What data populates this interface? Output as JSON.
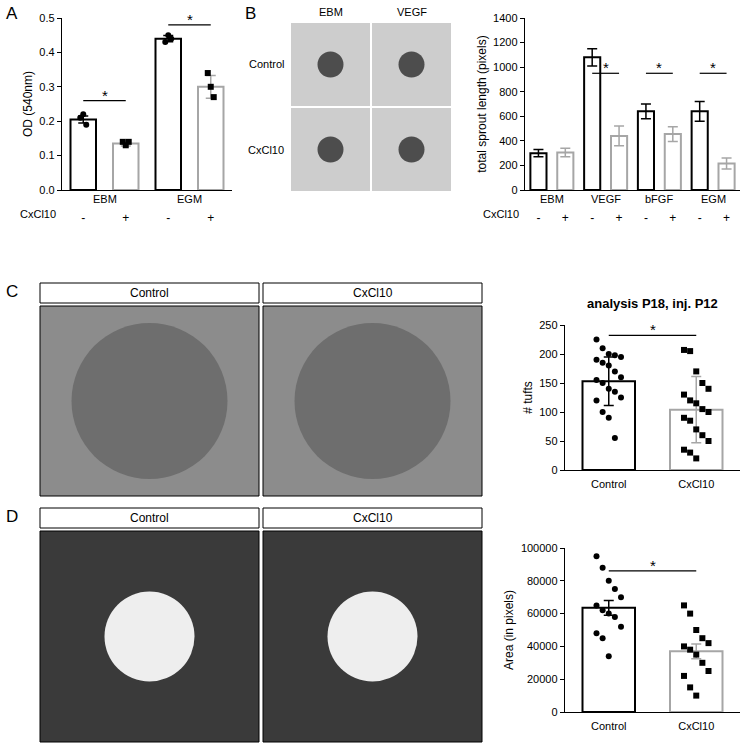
{
  "panel_labels": [
    "A",
    "B",
    "C",
    "D"
  ],
  "image_panels": [
    {
      "columns": [
        "EBM",
        "VEGF"
      ],
      "rows": [
        "Control",
        "CxCl10"
      ]
    },
    {
      "columns": [
        "Control",
        "CxCl10"
      ]
    },
    {
      "columns": [
        "Control",
        "CxCl10"
      ]
    }
  ],
  "chart_data": [
    {
      "type": "bar",
      "categories": [
        "-",
        "+",
        "-",
        "+"
      ],
      "groups": [
        "EBM",
        "EBM",
        "EGM",
        "EGM"
      ],
      "group_label": "CxCl10",
      "values": [
        0.205,
        0.135,
        0.44,
        0.3
      ],
      "errors": [
        0.01,
        0.007,
        0.009,
        0.033
      ],
      "points": [
        [
          0.21,
          0.22,
          0.19
        ],
        [
          0.14,
          0.13,
          0.14
        ],
        [
          0.43,
          0.45,
          0.44
        ],
        [
          0.34,
          0.3,
          0.27
        ]
      ],
      "colors": [
        "#000000",
        "#a6a6a6",
        "#000000",
        "#a6a6a6"
      ],
      "markers": [
        "circle",
        "square",
        "circle",
        "square"
      ],
      "ylabel": "OD (540nm)",
      "ylim": [
        0,
        0.5
      ],
      "yticks": [
        {
          "value": 0,
          "label": "0.0"
        },
        0.1,
        0.2,
        0.3,
        0.4,
        0.5
      ],
      "significance": [
        {
          "between": [
            0,
            1
          ],
          "y": 0.26,
          "label": "*"
        },
        {
          "between": [
            2,
            3
          ],
          "y": 0.48,
          "label": "*"
        }
      ]
    },
    {
      "type": "bar",
      "categories": [
        "-",
        "+",
        "-",
        "+",
        "-",
        "+",
        "-",
        "+"
      ],
      "groups": [
        "EBM",
        "EBM",
        "VEGF",
        "VEGF",
        "bFGF",
        "bFGF",
        "EGM",
        "EGM"
      ],
      "group_label": "CxCl10",
      "values": [
        300,
        305,
        1080,
        440,
        640,
        455,
        640,
        215
      ],
      "errors": [
        30,
        35,
        70,
        80,
        60,
        60,
        80,
        45
      ],
      "colors": [
        "#000000",
        "#a6a6a6",
        "#000000",
        "#a6a6a6",
        "#000000",
        "#a6a6a6",
        "#000000",
        "#a6a6a6"
      ],
      "ylabel": "total sprout length (pixels)",
      "ylim": [
        0,
        1400
      ],
      "yticks": [
        0,
        200,
        400,
        600,
        800,
        1000,
        1200,
        1400
      ],
      "significance": [
        {
          "between": [
            2,
            3
          ],
          "y": 950,
          "label": "*"
        },
        {
          "between": [
            4,
            5
          ],
          "y": 950,
          "label": "*"
        },
        {
          "between": [
            6,
            7
          ],
          "y": 950,
          "label": "*"
        }
      ]
    },
    {
      "type": "bar",
      "title": "analysis P18, inj. P12",
      "categories": [
        "Control",
        "CxCl10"
      ],
      "values": [
        153,
        104
      ],
      "errors": [
        42,
        57
      ],
      "points": [
        [
          225,
          210,
          200,
          198,
          195,
          190,
          185,
          180,
          170,
          160,
          155,
          150,
          140,
          135,
          125,
          120,
          100,
          90,
          55
        ],
        [
          207,
          205,
          170,
          150,
          140,
          130,
          120,
          115,
          105,
          100,
          90,
          85,
          70,
          60,
          50,
          35,
          30,
          20
        ]
      ],
      "colors": [
        "#000000",
        "#a6a6a6"
      ],
      "markers": [
        "circle",
        "square"
      ],
      "ylabel": "# tufts",
      "ylim": [
        0,
        250
      ],
      "yticks": [
        0,
        50,
        100,
        150,
        200,
        250
      ],
      "significance": [
        {
          "between": [
            0,
            1
          ],
          "y": 232,
          "label": "*"
        }
      ]
    },
    {
      "type": "bar",
      "categories": [
        "Control",
        "CxCl10"
      ],
      "values": [
        63500,
        37000
      ],
      "errors": [
        4500,
        4500
      ],
      "points": [
        [
          95000,
          88000,
          80000,
          75000,
          70000,
          65000,
          62000,
          60000,
          58000,
          52000,
          48000,
          45000,
          34000
        ],
        [
          65000,
          60000,
          50000,
          45000,
          42000,
          40000,
          38000,
          35000,
          30000,
          25000,
          22000,
          15000,
          10000
        ]
      ],
      "colors": [
        "#000000",
        "#a6a6a6"
      ],
      "markers": [
        "circle",
        "square"
      ],
      "ylabel": "Area (in pixels)",
      "ylim": [
        0,
        100000
      ],
      "yticks": [
        0,
        20000,
        40000,
        60000,
        80000,
        100000
      ],
      "significance": [
        {
          "between": [
            0,
            1
          ],
          "y": 86000,
          "label": "*"
        }
      ]
    }
  ]
}
